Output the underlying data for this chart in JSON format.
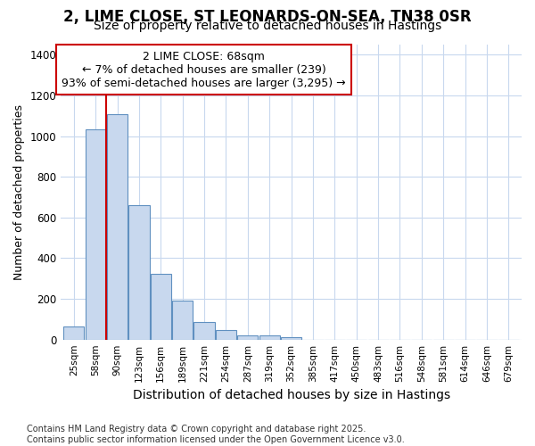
{
  "title": "2, LIME CLOSE, ST LEONARDS-ON-SEA, TN38 0SR",
  "subtitle": "Size of property relative to detached houses in Hastings",
  "xlabel": "Distribution of detached houses by size in Hastings",
  "ylabel": "Number of detached properties",
  "categories": [
    "25sqm",
    "58sqm",
    "90sqm",
    "123sqm",
    "156sqm",
    "189sqm",
    "221sqm",
    "254sqm",
    "287sqm",
    "319sqm",
    "352sqm",
    "385sqm",
    "417sqm",
    "450sqm",
    "483sqm",
    "516sqm",
    "548sqm",
    "581sqm",
    "614sqm",
    "646sqm",
    "679sqm"
  ],
  "values": [
    65,
    1035,
    1110,
    660,
    325,
    190,
    85,
    45,
    20,
    20,
    10,
    0,
    0,
    0,
    0,
    0,
    0,
    0,
    0,
    0,
    0
  ],
  "bar_color": "#c8d8ee",
  "bar_edge_color": "#6090c0",
  "vline_index": 2,
  "vline_color": "#cc0000",
  "annotation_text": "2 LIME CLOSE: 68sqm\n← 7% of detached houses are smaller (239)\n93% of semi-detached houses are larger (3,295) →",
  "annotation_box_edgecolor": "#cc0000",
  "annotation_fontsize": 9,
  "ylim": [
    0,
    1450
  ],
  "yticks": [
    0,
    200,
    400,
    600,
    800,
    1000,
    1200,
    1400
  ],
  "title_fontsize": 12,
  "subtitle_fontsize": 10,
  "footer_text": "Contains HM Land Registry data © Crown copyright and database right 2025.\nContains public sector information licensed under the Open Government Licence v3.0.",
  "background_color": "#ffffff",
  "plot_bg_color": "#ffffff",
  "grid_color": "#c8d8ee",
  "xlabel_fontsize": 10,
  "ylabel_fontsize": 9
}
